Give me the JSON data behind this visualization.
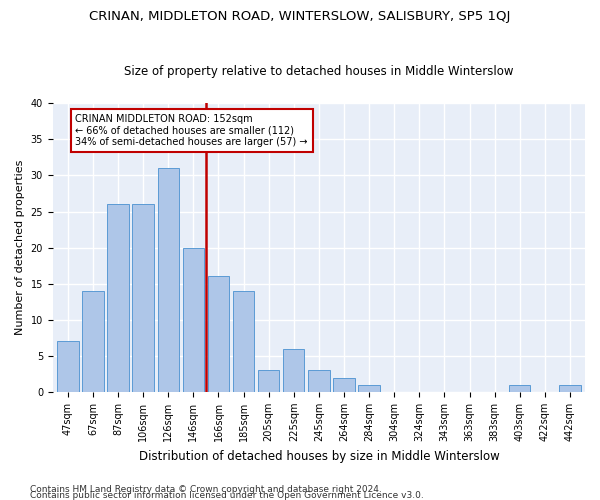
{
  "title1": "CRINAN, MIDDLETON ROAD, WINTERSLOW, SALISBURY, SP5 1QJ",
  "title2": "Size of property relative to detached houses in Middle Winterslow",
  "xlabel": "Distribution of detached houses by size in Middle Winterslow",
  "ylabel": "Number of detached properties",
  "categories": [
    "47sqm",
    "67sqm",
    "87sqm",
    "106sqm",
    "126sqm",
    "146sqm",
    "166sqm",
    "185sqm",
    "205sqm",
    "225sqm",
    "245sqm",
    "264sqm",
    "284sqm",
    "304sqm",
    "324sqm",
    "343sqm",
    "363sqm",
    "383sqm",
    "403sqm",
    "422sqm",
    "442sqm"
  ],
  "values": [
    7,
    14,
    26,
    26,
    31,
    20,
    16,
    14,
    3,
    6,
    3,
    2,
    1,
    0,
    0,
    0,
    0,
    0,
    1,
    0,
    1
  ],
  "bar_color": "#aec6e8",
  "bar_edge_color": "#5b9bd5",
  "reference_line_x": 5.5,
  "reference_line_color": "#c00000",
  "annotation_line1": "CRINAN MIDDLETON ROAD: 152sqm",
  "annotation_line2": "← 66% of detached houses are smaller (112)",
  "annotation_line3": "34% of semi-detached houses are larger (57) →",
  "annotation_box_color": "#c00000",
  "ylim": [
    0,
    40
  ],
  "yticks": [
    0,
    5,
    10,
    15,
    20,
    25,
    30,
    35,
    40
  ],
  "footer1": "Contains HM Land Registry data © Crown copyright and database right 2024.",
  "footer2": "Contains public sector information licensed under the Open Government Licence v3.0.",
  "plot_bg_color": "#e8eef8",
  "grid_color": "#ffffff",
  "fig_bg_color": "#ffffff",
  "title1_fontsize": 9.5,
  "title2_fontsize": 8.5,
  "xlabel_fontsize": 8.5,
  "ylabel_fontsize": 8,
  "tick_fontsize": 7,
  "annotation_fontsize": 7,
  "footer_fontsize": 6.5
}
